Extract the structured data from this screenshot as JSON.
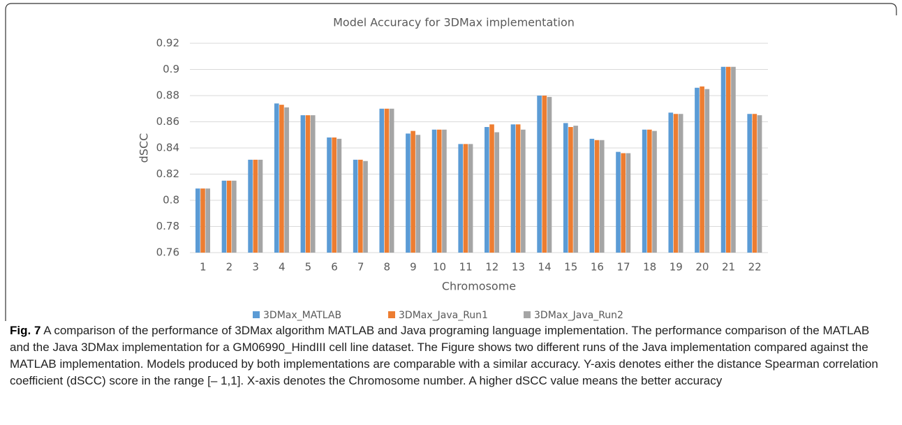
{
  "chart_data": {
    "type": "bar",
    "title": "Model Accuracy for 3DMax implementation",
    "x_label": "Chromosome",
    "y_label": "dSCC",
    "categories": [
      "1",
      "2",
      "3",
      "4",
      "5",
      "6",
      "7",
      "8",
      "9",
      "10",
      "11",
      "12",
      "13",
      "14",
      "15",
      "16",
      "17",
      "18",
      "19",
      "20",
      "21",
      "22"
    ],
    "series": [
      {
        "name": "3DMax_MATLAB",
        "color": "#5b9bd5",
        "values": [
          0.809,
          0.815,
          0.831,
          0.874,
          0.865,
          0.848,
          0.831,
          0.87,
          0.851,
          0.854,
          0.843,
          0.856,
          0.858,
          0.88,
          0.859,
          0.847,
          0.837,
          0.854,
          0.867,
          0.886,
          0.902,
          0.866
        ]
      },
      {
        "name": "3DMax_Java_Run1",
        "color": "#ed7d31",
        "values": [
          0.809,
          0.815,
          0.831,
          0.873,
          0.865,
          0.848,
          0.831,
          0.87,
          0.853,
          0.854,
          0.843,
          0.858,
          0.858,
          0.88,
          0.856,
          0.846,
          0.836,
          0.854,
          0.866,
          0.887,
          0.902,
          0.866
        ]
      },
      {
        "name": "3DMax_Java_Run2",
        "color": "#a5a5a5",
        "values": [
          0.809,
          0.815,
          0.831,
          0.871,
          0.865,
          0.847,
          0.83,
          0.87,
          0.85,
          0.854,
          0.843,
          0.852,
          0.854,
          0.879,
          0.857,
          0.846,
          0.836,
          0.853,
          0.866,
          0.885,
          0.902,
          0.865
        ]
      }
    ],
    "ylim": [
      0.76,
      0.92
    ],
    "yticks": [
      0.76,
      0.78,
      0.8,
      0.82,
      0.84,
      0.86,
      0.88,
      0.9,
      0.92
    ],
    "grid": true,
    "legend": "bottom"
  },
  "caption": {
    "label": "Fig. 7",
    "text": "A comparison of the performance of 3DMax algorithm MATLAB and Java programing language implementation. The performance comparison of the MATLAB and the Java 3DMax implementation for a GM06990_HindIII cell line dataset. The Figure shows two different runs of the Java implementation compared against the MATLAB implementation. Models produced by both implementations are comparable with a similar accuracy. Y-axis denotes either the distance Spearman correlation coefficient (dSCC) score in the range [– 1,1]. X-axis denotes the Chromosome number. A higher dSCC value means the better accuracy"
  }
}
